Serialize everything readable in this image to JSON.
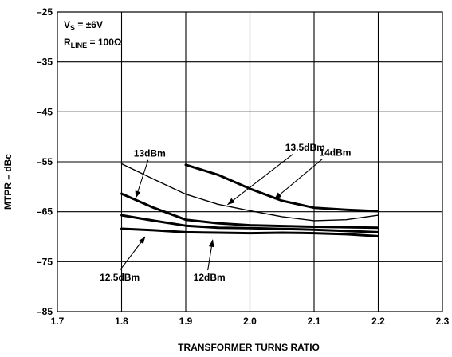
{
  "chart_data": {
    "type": "line",
    "xlabel": "TRANSFORMER TURNS RATIO",
    "ylabel": "MTPR – dBc",
    "xlim": [
      1.7,
      2.3
    ],
    "ylim": [
      -85,
      -25
    ],
    "x_ticks": [
      "1.7",
      "1.8",
      "1.9",
      "2.0",
      "2.1",
      "2.2",
      "2.3"
    ],
    "y_ticks": [
      "–25",
      "–35",
      "–45",
      "–55",
      "–65",
      "–75",
      "–85"
    ],
    "grid": true,
    "conditions": {
      "vs_prefix": "V",
      "vs_sub": "S",
      "vs_value": " = ±6V",
      "rline_prefix": "R",
      "rline_sub": "LINE",
      "rline_value": " = 100Ω"
    },
    "series": [
      {
        "name": "14dBm",
        "bold": true,
        "x": [
          1.9,
          1.95,
          2.0,
          2.05,
          2.1,
          2.15,
          2.2
        ],
        "y": [
          -55.6,
          -57.6,
          -60.4,
          -62.8,
          -64.2,
          -64.6,
          -64.9
        ]
      },
      {
        "name": "13.5dBm",
        "bold": false,
        "x": [
          1.8,
          1.85,
          1.9,
          1.95,
          2.0,
          2.05,
          2.1,
          2.15,
          2.2
        ],
        "y": [
          -55.4,
          -58.5,
          -61.5,
          -63.5,
          -64.8,
          -66.0,
          -66.8,
          -66.6,
          -65.7
        ]
      },
      {
        "name": "13dBm",
        "bold": true,
        "x": [
          1.8,
          1.85,
          1.9,
          1.95,
          2.0,
          2.1,
          2.2
        ],
        "y": [
          -61.4,
          -64.2,
          -66.6,
          -67.3,
          -67.7,
          -68.0,
          -68.2
        ]
      },
      {
        "name": "12.5dBm",
        "bold": true,
        "x": [
          1.8,
          1.85,
          1.9,
          1.95,
          2.0,
          2.1,
          2.2
        ],
        "y": [
          -65.7,
          -66.8,
          -67.8,
          -68.2,
          -68.3,
          -68.6,
          -69.1
        ]
      },
      {
        "name": "12dBm",
        "bold": true,
        "x": [
          1.8,
          1.85,
          1.9,
          1.95,
          2.0,
          2.05,
          2.1,
          2.15,
          2.2
        ],
        "y": [
          -68.4,
          -68.7,
          -69.1,
          -69.2,
          -69.3,
          -69.2,
          -69.3,
          -69.5,
          -69.9
        ]
      }
    ],
    "annotations": [
      {
        "text": "13dBm",
        "label_x": 1.819,
        "label_y": -54.0,
        "arrow_to_x": 1.822,
        "arrow_to_y": -62.3
      },
      {
        "text": "13.5dBm",
        "label_x": 2.055,
        "label_y": -52.8,
        "arrow_to_x": 1.965,
        "arrow_to_y": -63.6
      },
      {
        "text": "14dBm",
        "label_x": 2.108,
        "label_y": -53.8,
        "arrow_to_x": 2.038,
        "arrow_to_y": -62.5
      },
      {
        "text": "12.5dBm",
        "label_x": 1.766,
        "label_y": -78.8,
        "arrow_to_x": 1.837,
        "arrow_to_y": -70.0
      },
      {
        "text": "12dBm",
        "label_x": 1.912,
        "label_y": -78.8,
        "arrow_to_x": 1.942,
        "arrow_to_y": -70.6
      }
    ]
  }
}
